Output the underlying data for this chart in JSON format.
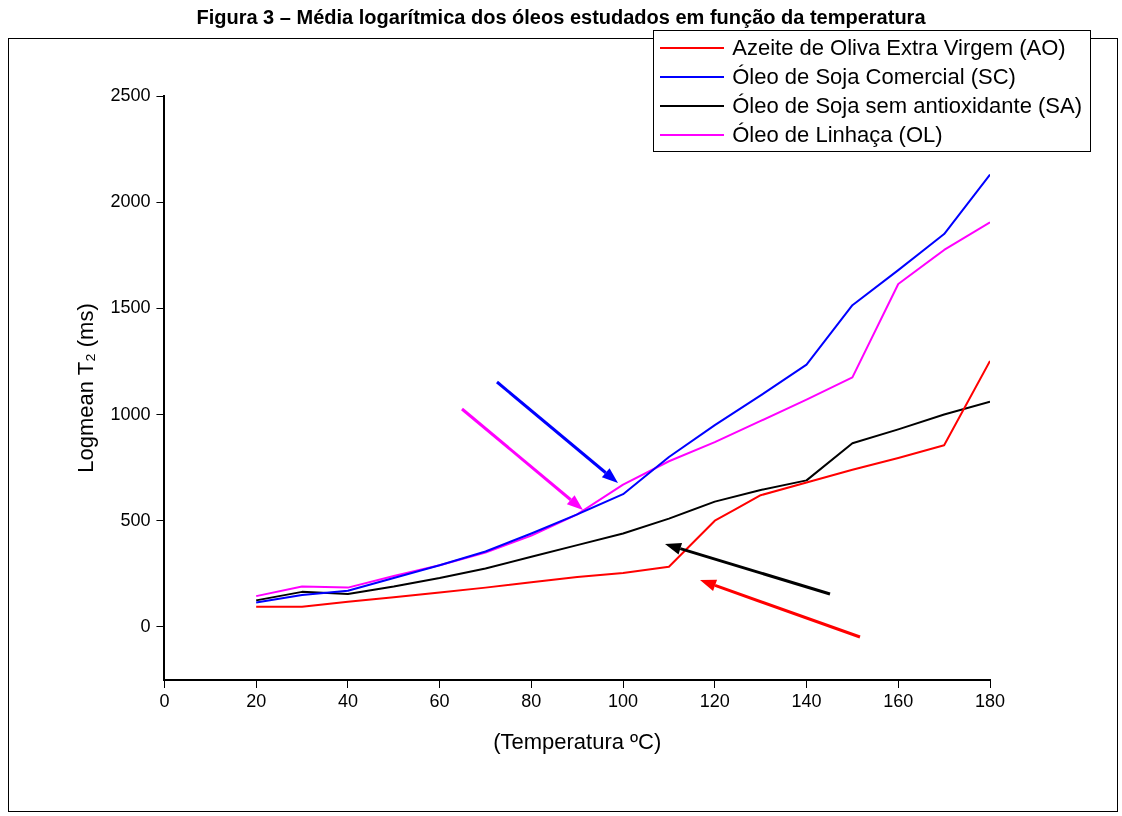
{
  "chart_data": {
    "type": "line",
    "title": "Figura 3 – Média logarítmica dos óleos estudados em função da temperatura",
    "xlabel": "(Temperatura ºC)",
    "ylabel": "Logmean T₂ (ms)",
    "x": [
      20,
      30,
      40,
      50,
      60,
      70,
      80,
      90,
      100,
      110,
      120,
      130,
      140,
      150,
      160,
      170,
      180
    ],
    "series": [
      {
        "name": "Azeite de Oliva Extra Virgem (AO)",
        "color": "#ff0000",
        "values": [
          95,
          95,
          118,
          140,
          162,
          185,
          210,
          235,
          254,
          283,
          500,
          620,
          680,
          740,
          795,
          855,
          1252
        ]
      },
      {
        "name": "Óleo de Soja Comercial (SC)",
        "color": "#0000ff",
        "values": [
          115,
          150,
          170,
          230,
          290,
          355,
          440,
          530,
          625,
          800,
          950,
          1090,
          1235,
          1515,
          1680,
          1850,
          2130
        ]
      },
      {
        "name": "Óleo de Soja sem antioxidante (SA)",
        "color": "#000000",
        "values": [
          125,
          165,
          155,
          190,
          230,
          275,
          330,
          385,
          440,
          510,
          590,
          645,
          690,
          865,
          930,
          1000,
          1060
        ]
      },
      {
        "name": "Óleo de Linhaça (OL)",
        "color": "#ff00ff",
        "values": [
          145,
          190,
          185,
          240,
          290,
          350,
          430,
          530,
          670,
          780,
          870,
          970,
          1070,
          1175,
          1615,
          1775,
          1905
        ]
      }
    ],
    "xlim": [
      0,
      180
    ],
    "xticks": [
      0,
      20,
      40,
      60,
      80,
      100,
      120,
      140,
      160,
      180
    ],
    "ylim": [
      -250,
      2500
    ],
    "yticks": [
      0,
      500,
      1000,
      1500,
      2000,
      2500
    ],
    "grid": false,
    "legend": "top right",
    "marker": "none",
    "line_style": "solid"
  }
}
